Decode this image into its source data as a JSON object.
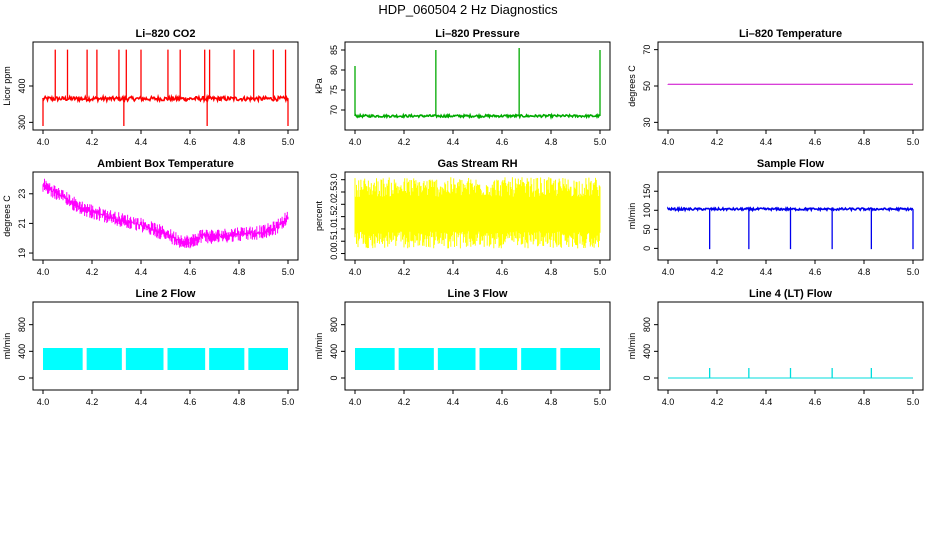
{
  "title": "HDP_060504  2 Hz Diagnostics",
  "chart_data": [
    {
      "type": "line",
      "title": "Li–820 CO2",
      "ylabel": "Licor ppm",
      "xlim": [
        4.0,
        5.0
      ],
      "ylim": [
        290,
        510
      ],
      "x_ticks": [
        "4.0",
        "4.2",
        "4.4",
        "4.6",
        "4.8",
        "5.0"
      ],
      "y_ticks": [
        300,
        400
      ],
      "color": "#ff0000",
      "series": [
        {
          "baseline": 365,
          "noise": 6,
          "spike_x": [
            4.05,
            4.1,
            4.18,
            4.22,
            4.31,
            4.34,
            4.4,
            4.51,
            4.56,
            4.66,
            4.68,
            4.78,
            4.86,
            4.94,
            4.99
          ],
          "spike_y": 500,
          "dip_x": [
            4.0,
            4.33,
            4.67,
            5.0
          ],
          "dip_y": 290
        }
      ]
    },
    {
      "type": "line",
      "title": "Li–820 Pressure",
      "ylabel": "kPa",
      "xlim": [
        4.0,
        5.0
      ],
      "ylim": [
        66,
        86
      ],
      "x_ticks": [
        "4.0",
        "4.2",
        "4.4",
        "4.6",
        "4.8",
        "5.0"
      ],
      "y_ticks": [
        70,
        75,
        80,
        85
      ],
      "color": "#00aa00",
      "series": [
        {
          "baseline": 68.5,
          "noise": 0.3,
          "spike_x": [
            4.0,
            4.33,
            4.67,
            5.0
          ],
          "spike_y": [
            81,
            85,
            85.5,
            85
          ]
        }
      ]
    },
    {
      "type": "line",
      "title": "Li–820 Temperature",
      "ylabel": "degrees C",
      "xlim": [
        4.0,
        5.0
      ],
      "ylim": [
        28,
        72
      ],
      "x_ticks": [
        "4.0",
        "4.2",
        "4.4",
        "4.6",
        "4.8",
        "5.0"
      ],
      "y_ticks": [
        30,
        50,
        70
      ],
      "color": "#cc00cc",
      "series": [
        {
          "baseline": 51,
          "noise": 0
        }
      ]
    },
    {
      "type": "line",
      "title": "Ambient Box Temperature",
      "ylabel": "degrees C",
      "xlim": [
        4.0,
        5.0
      ],
      "ylim": [
        18.8,
        24.2
      ],
      "x_ticks": [
        "4.0",
        "4.2",
        "4.4",
        "4.6",
        "4.8",
        "5.0"
      ],
      "y_ticks": [
        19,
        21,
        23
      ],
      "color": "#ff00ff",
      "series": [
        {
          "x": [
            4.0,
            4.05,
            4.1,
            4.15,
            4.2,
            4.3,
            4.4,
            4.5,
            4.55,
            4.6,
            4.65,
            4.7,
            4.8,
            4.9,
            4.95,
            5.0
          ],
          "y": [
            23.6,
            23.1,
            22.6,
            22.1,
            21.8,
            21.3,
            20.9,
            20.3,
            19.9,
            19.7,
            20.2,
            20.1,
            20.3,
            20.4,
            20.7,
            21.4
          ],
          "noise": 0.5
        }
      ]
    },
    {
      "type": "line",
      "title": "Gas Stream RH",
      "ylabel": "percent",
      "xlim": [
        4.0,
        5.0
      ],
      "ylim": [
        -0.1,
        3.15
      ],
      "x_ticks": [
        "4.0",
        "4.2",
        "4.4",
        "4.6",
        "4.8",
        "5.0"
      ],
      "y_ticks": [
        "0.0",
        "0.5",
        "1.0",
        "1.5",
        "2.0",
        "2.5",
        "3.0"
      ],
      "color": "#ffff00",
      "series": [
        {
          "center": 1.5,
          "range": [
            0.2,
            3.1
          ]
        }
      ]
    },
    {
      "type": "line",
      "title": "Sample Flow",
      "ylabel": "ml/min",
      "xlim": [
        4.0,
        5.0
      ],
      "ylim": [
        -20,
        190
      ],
      "x_ticks": [
        "4.0",
        "4.2",
        "4.4",
        "4.6",
        "4.8",
        "5.0"
      ],
      "y_ticks": [
        0,
        50,
        100,
        150
      ],
      "color": "#0000ee",
      "series": [
        {
          "baseline": 103,
          "noise": 3,
          "dip_x": [
            4.17,
            4.33,
            4.5,
            4.67,
            4.83,
            5.0
          ],
          "dip_y": -2
        }
      ]
    },
    {
      "type": "area",
      "title": "Line 2 Flow",
      "ylabel": "ml/min",
      "xlim": [
        4.0,
        5.0
      ],
      "ylim": [
        -120,
        1080
      ],
      "x_ticks": [
        "4.0",
        "4.2",
        "4.4",
        "4.6",
        "4.8",
        "5.0"
      ],
      "y_ticks": [
        0,
        400,
        800
      ],
      "color": "#00ffff",
      "series": [
        {
          "low": 120,
          "high": 450,
          "gap_x": [
            4.17,
            4.33,
            4.5,
            4.67,
            4.83
          ]
        }
      ]
    },
    {
      "type": "area",
      "title": "Line 3 Flow",
      "ylabel": "ml/min",
      "xlim": [
        4.0,
        5.0
      ],
      "ylim": [
        -120,
        1080
      ],
      "x_ticks": [
        "4.0",
        "4.2",
        "4.4",
        "4.6",
        "4.8",
        "5.0"
      ],
      "y_ticks": [
        0,
        400,
        800
      ],
      "color": "#00ffff",
      "series": [
        {
          "low": 120,
          "high": 450,
          "gap_x": [
            4.17,
            4.33,
            4.5,
            4.67,
            4.83
          ]
        }
      ]
    },
    {
      "type": "line",
      "title": "Line 4 (LT) Flow",
      "ylabel": "ml/min",
      "xlim": [
        4.0,
        5.0
      ],
      "ylim": [
        -120,
        1080
      ],
      "x_ticks": [
        "4.0",
        "4.2",
        "4.4",
        "4.6",
        "4.8",
        "5.0"
      ],
      "y_ticks": [
        0,
        400,
        800
      ],
      "color": "#00dddd",
      "series": [
        {
          "baseline": 0,
          "spike_x": [
            4.17,
            4.33,
            4.5,
            4.67,
            4.83
          ],
          "spike_y": 150
        }
      ]
    }
  ]
}
